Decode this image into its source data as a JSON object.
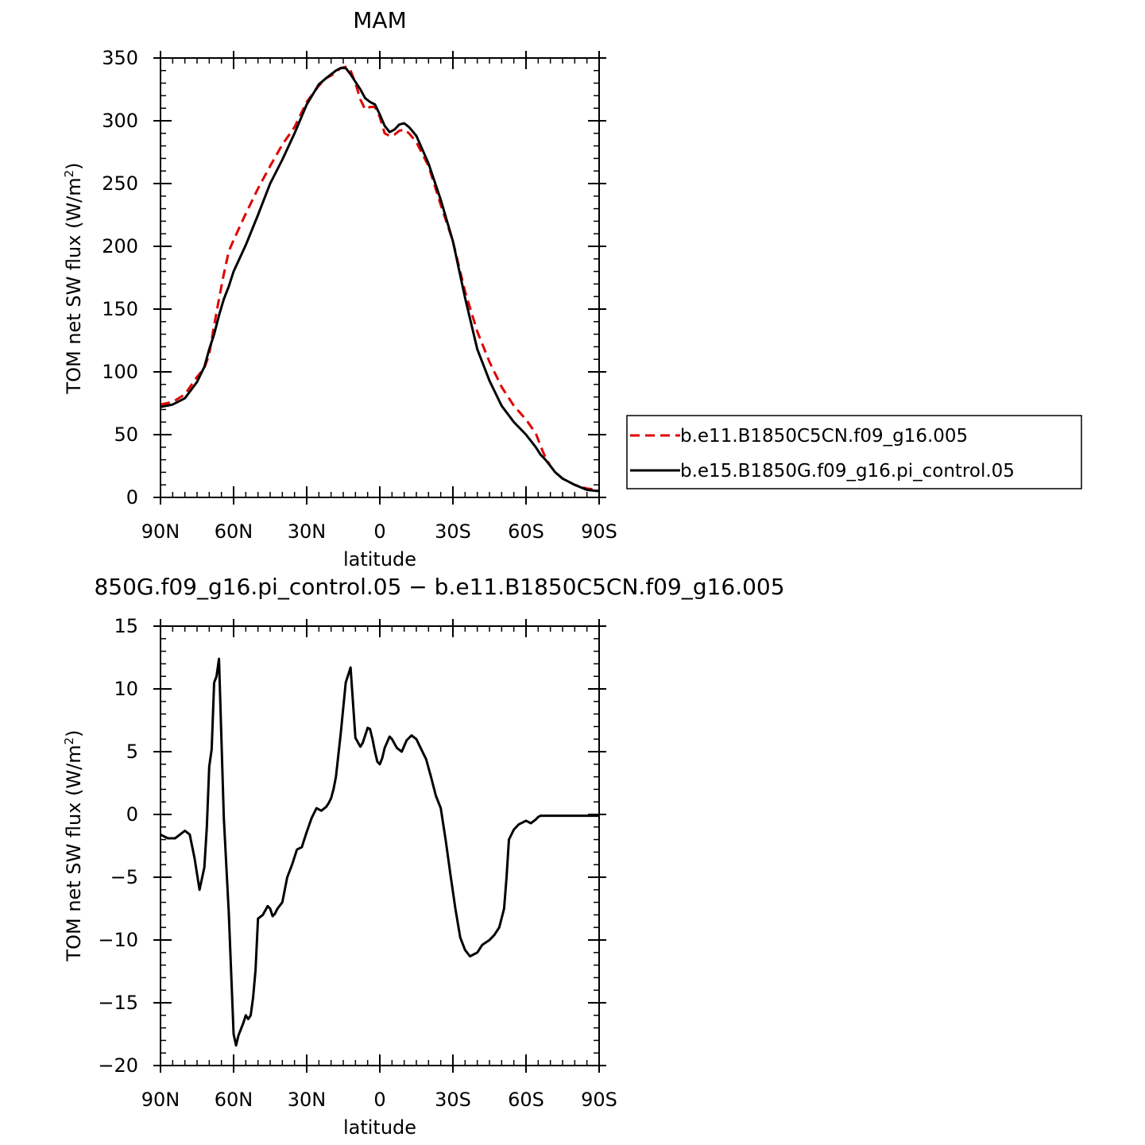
{
  "chart_data": [
    {
      "type": "line",
      "title": "MAM",
      "xlabel": "latitude",
      "ylabel": "TOM net SW flux (W/m²)",
      "ylabel_parts": {
        "main": "TOM net SW flux (W/m",
        "sup": "2",
        "end": ")"
      },
      "xlim": [
        90,
        -90
      ],
      "ylim": [
        0,
        350
      ],
      "xticks": [
        {
          "value": 90,
          "label": "90N"
        },
        {
          "value": 60,
          "label": "60N"
        },
        {
          "value": 30,
          "label": "30N"
        },
        {
          "value": 0,
          "label": "0"
        },
        {
          "value": -30,
          "label": "30S"
        },
        {
          "value": -60,
          "label": "60S"
        },
        {
          "value": -90,
          "label": "90S"
        }
      ],
      "yticks": [
        {
          "value": 0,
          "label": "0"
        },
        {
          "value": 50,
          "label": "50"
        },
        {
          "value": 100,
          "label": "100"
        },
        {
          "value": 150,
          "label": "150"
        },
        {
          "value": 200,
          "label": "200"
        },
        {
          "value": 250,
          "label": "250"
        },
        {
          "value": 300,
          "label": "300"
        },
        {
          "value": 350,
          "label": "350"
        }
      ],
      "legend_position": "right",
      "series": [
        {
          "name": "b.e11.B1850C5CN.f09_g16.005",
          "color": "#e00000",
          "dash": "dashed",
          "x": [
            90,
            85,
            80,
            75,
            72,
            70,
            68,
            66,
            64,
            62,
            60,
            55,
            50,
            45,
            40,
            35,
            30,
            25,
            22,
            20,
            18,
            16,
            14,
            12,
            10,
            8,
            6,
            4,
            2,
            0,
            -2,
            -4,
            -6,
            -8,
            -10,
            -12,
            -15,
            -20,
            -25,
            -30,
            -35,
            -40,
            -45,
            -50,
            -55,
            -60,
            -64,
            -66,
            -67,
            -68,
            -70,
            -72,
            -75,
            -80,
            -85,
            -90
          ],
          "y": [
            74,
            76,
            82,
            96,
            103,
            114,
            137,
            158,
            178,
            196,
            205,
            226,
            246,
            264,
            281,
            295,
            315,
            328,
            334,
            336,
            339,
            342,
            343,
            340,
            330,
            317,
            309,
            311,
            311,
            303,
            290,
            288,
            289,
            292,
            293,
            290,
            283,
            264,
            233,
            204,
            164,
            132,
            108,
            88,
            73,
            62,
            51,
            41,
            36,
            32,
            25,
            20,
            15,
            10,
            7,
            6
          ]
        },
        {
          "name": "b.e15.B1850G.f09_g16.pi_control.05",
          "color": "#000000",
          "dash": "solid",
          "x": [
            90,
            85,
            80,
            75,
            72,
            70,
            68,
            66,
            64,
            62,
            60,
            55,
            50,
            45,
            40,
            35,
            30,
            25,
            22,
            20,
            18,
            16,
            14,
            12,
            10,
            8,
            6,
            4,
            2,
            0,
            -2,
            -4,
            -6,
            -8,
            -10,
            -12,
            -15,
            -20,
            -25,
            -30,
            -35,
            -40,
            -45,
            -50,
            -55,
            -60,
            -64,
            -66,
            -67,
            -68,
            -70,
            -72,
            -75,
            -80,
            -85,
            -90
          ],
          "y": [
            72,
            74,
            79,
            92,
            104,
            118,
            130,
            145,
            158,
            168,
            180,
            201,
            225,
            250,
            269,
            290,
            313,
            329,
            334,
            337,
            340,
            342,
            342,
            337,
            331,
            325,
            318,
            315,
            313,
            305,
            296,
            291,
            293,
            297,
            298,
            295,
            288,
            266,
            237,
            204,
            159,
            118,
            93,
            73,
            60,
            50,
            40,
            34,
            32,
            30,
            25,
            20,
            15,
            10,
            6,
            5
          ]
        }
      ]
    },
    {
      "type": "line",
      "title": "850G.f09_g16.pi_control.05 − b.e11.B1850C5CN.f09_g16.005",
      "xlabel": "latitude",
      "ylabel": "TOM net SW flux (W/m²)",
      "ylabel_parts": {
        "main": "TOM net SW flux (W/m",
        "sup": "2",
        "end": ")"
      },
      "xlim": [
        90,
        -90
      ],
      "ylim": [
        -20,
        15
      ],
      "xticks": [
        {
          "value": 90,
          "label": "90N"
        },
        {
          "value": 60,
          "label": "60N"
        },
        {
          "value": 30,
          "label": "30N"
        },
        {
          "value": 0,
          "label": "0"
        },
        {
          "value": -30,
          "label": "30S"
        },
        {
          "value": -60,
          "label": "60S"
        },
        {
          "value": -90,
          "label": "90S"
        }
      ],
      "yticks": [
        {
          "value": -20,
          "label": "−20"
        },
        {
          "value": -15,
          "label": "−15"
        },
        {
          "value": -10,
          "label": "−10"
        },
        {
          "value": -5,
          "label": "−5"
        },
        {
          "value": 0,
          "label": "0"
        },
        {
          "value": 5,
          "label": "5"
        },
        {
          "value": 10,
          "label": "10"
        },
        {
          "value": 15,
          "label": "15"
        }
      ],
      "series": [
        {
          "name": "",
          "color": "#000000",
          "dash": "solid",
          "x": [
            90,
            87,
            84,
            82,
            80,
            78,
            76,
            74,
            72,
            71,
            70,
            69,
            68,
            67,
            66,
            64,
            62,
            60,
            59,
            58,
            57,
            56,
            55,
            54,
            53,
            52,
            51,
            50,
            48,
            46,
            45,
            44,
            43,
            42,
            40,
            38,
            36,
            34,
            32,
            31,
            30,
            28,
            26,
            24,
            22,
            21,
            20,
            19,
            18,
            16,
            14,
            12,
            10,
            8,
            7,
            6,
            5,
            4,
            3,
            2,
            1,
            0,
            -1,
            -2,
            -4,
            -5,
            -7,
            -9,
            -11,
            -13,
            -15,
            -17,
            -19,
            -21,
            -23,
            -25,
            -27,
            -29,
            -31,
            -33,
            -35,
            -37,
            -40,
            -42,
            -45,
            -47,
            -49,
            -51,
            -52,
            -53,
            -55,
            -57,
            -60,
            -62,
            -64,
            -65,
            -66,
            -67,
            -68,
            -70,
            -72,
            -74,
            -76,
            -78,
            -80,
            -85,
            -90
          ],
          "y": [
            -1.6,
            -1.9,
            -1.9,
            -1.6,
            -1.3,
            -1.6,
            -3.5,
            -6.0,
            -4.2,
            -1.0,
            3.8,
            5.2,
            10.5,
            11.0,
            12.4,
            -0.3,
            -7.8,
            -17.5,
            -18.4,
            -17.6,
            -17.1,
            -16.6,
            -16.0,
            -16.3,
            -16.0,
            -14.6,
            -12.4,
            -8.3,
            -8.0,
            -7.3,
            -7.5,
            -8.1,
            -7.9,
            -7.5,
            -7.0,
            -5.0,
            -4.0,
            -2.8,
            -2.6,
            -2.0,
            -1.4,
            -0.3,
            0.5,
            0.3,
            0.6,
            0.9,
            1.3,
            2.0,
            3.0,
            6.5,
            10.5,
            11.7,
            6.1,
            5.4,
            5.7,
            6.3,
            6.9,
            6.8,
            6.0,
            5.0,
            4.2,
            4.0,
            4.5,
            5.3,
            6.2,
            6.0,
            5.3,
            5.0,
            5.9,
            6.3,
            6.0,
            5.2,
            4.4,
            3.0,
            1.5,
            0.5,
            -2.0,
            -4.8,
            -7.5,
            -9.8,
            -10.8,
            -11.3,
            -11.0,
            -10.4,
            -10.0,
            -9.6,
            -9.0,
            -7.5,
            -5.0,
            -2.0,
            -1.2,
            -0.8,
            -0.5,
            -0.7,
            -0.4,
            -0.2,
            -0.1,
            -0.1,
            -0.1,
            -0.1,
            -0.1,
            -0.1,
            -0.1,
            -0.1,
            -0.1,
            -0.1,
            -0.1
          ]
        }
      ]
    }
  ]
}
